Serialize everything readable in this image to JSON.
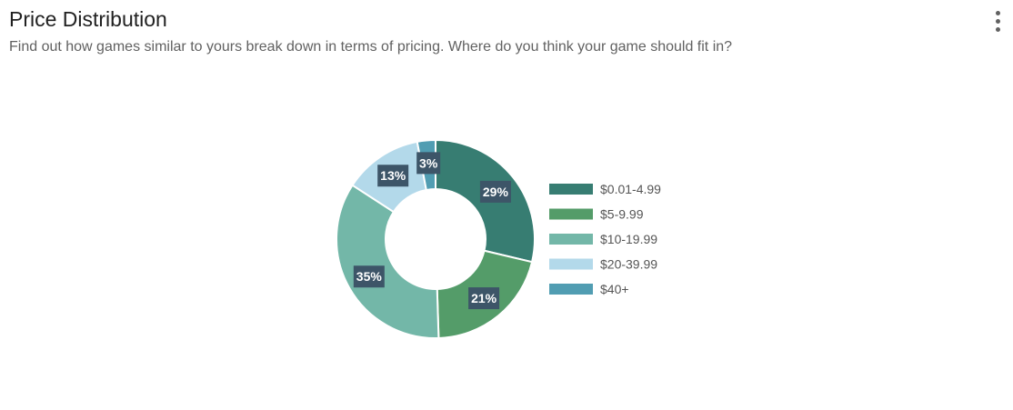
{
  "header": {
    "title": "Price Distribution",
    "subtitle": "Find out how games similar to yours break down in terms of pricing. Where do you think your game should fit in?"
  },
  "menu": {
    "icon": "more-vertical-icon"
  },
  "chart_data": {
    "type": "pie",
    "donut": true,
    "title": "",
    "legend_position": "right",
    "label_color": "#3d5568",
    "series": [
      {
        "name": "$0.01-4.99",
        "value": 29,
        "label": "29%",
        "color": "#377d72"
      },
      {
        "name": "$5-9.99",
        "value": 21,
        "label": "21%",
        "color": "#549c69"
      },
      {
        "name": "$10-19.99",
        "value": 35,
        "label": "35%",
        "color": "#73b7a8"
      },
      {
        "name": "$20-39.99",
        "value": 13,
        "label": "13%",
        "color": "#b3d9ea"
      },
      {
        "name": "$40+",
        "value": 3,
        "label": "3%",
        "color": "#519db2"
      }
    ]
  }
}
